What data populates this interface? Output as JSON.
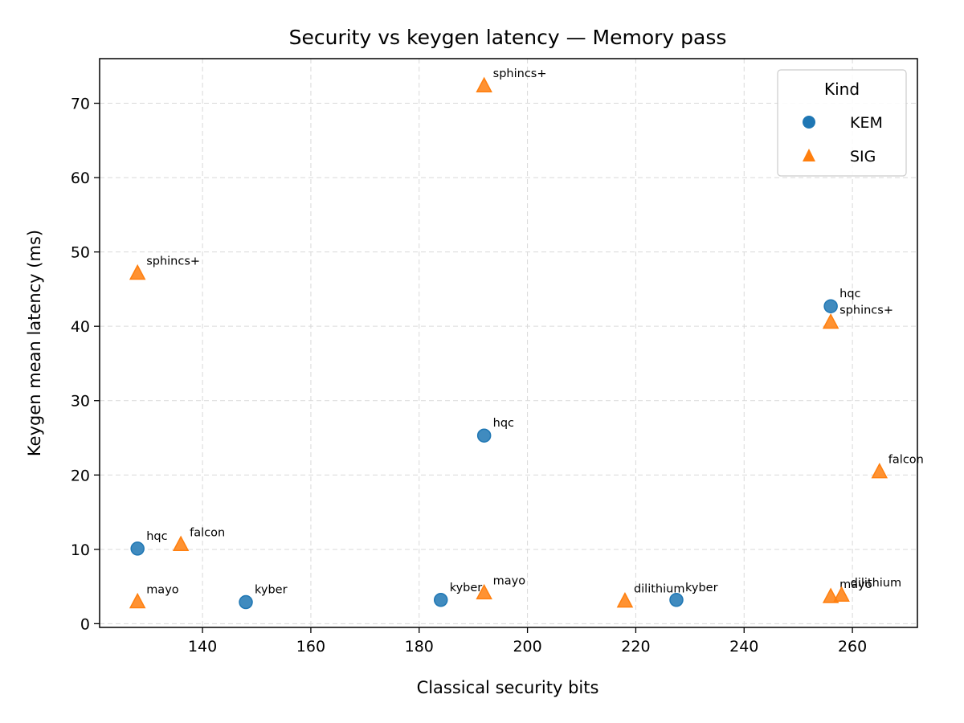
{
  "chart_data": {
    "type": "scatter",
    "title": "Security vs keygen latency — Memory pass",
    "xlabel": "Classical security bits",
    "ylabel": "Keygen mean latency (ms)",
    "xlim": [
      121,
      272
    ],
    "ylim": [
      -0.5,
      76
    ],
    "xticks": [
      140,
      160,
      180,
      200,
      220,
      240,
      260
    ],
    "yticks": [
      0,
      10,
      20,
      30,
      40,
      50,
      60,
      70
    ],
    "grid": true,
    "legend": {
      "title": "Kind",
      "placement": "top-right"
    },
    "series": [
      {
        "name": "KEM",
        "marker": "circle",
        "color": "#1f77b4",
        "points": [
          {
            "x": 128,
            "y": 10.1,
            "label": "hqc"
          },
          {
            "x": 148,
            "y": 2.9,
            "label": "kyber"
          },
          {
            "x": 184,
            "y": 3.2,
            "label": "kyber"
          },
          {
            "x": 192,
            "y": 25.3,
            "label": "hqc"
          },
          {
            "x": 227.5,
            "y": 3.2,
            "label": "kyber"
          },
          {
            "x": 256,
            "y": 42.7,
            "label": "hqc"
          }
        ]
      },
      {
        "name": "SIG",
        "marker": "triangle",
        "color": "#ff7f0e",
        "points": [
          {
            "x": 128,
            "y": 47.1,
            "label": "sphincs+"
          },
          {
            "x": 128,
            "y": 2.9,
            "label": "mayo"
          },
          {
            "x": 136,
            "y": 10.6,
            "label": "falcon"
          },
          {
            "x": 192,
            "y": 72.3,
            "label": "sphincs+"
          },
          {
            "x": 192,
            "y": 4.1,
            "label": "mayo"
          },
          {
            "x": 218,
            "y": 3.0,
            "label": "dilithium"
          },
          {
            "x": 256,
            "y": 40.5,
            "label": "sphincs+"
          },
          {
            "x": 256,
            "y": 3.6,
            "label": "mayo"
          },
          {
            "x": 258,
            "y": 3.8,
            "label": "dilithium"
          },
          {
            "x": 265,
            "y": 20.4,
            "label": "falcon"
          }
        ]
      }
    ]
  }
}
